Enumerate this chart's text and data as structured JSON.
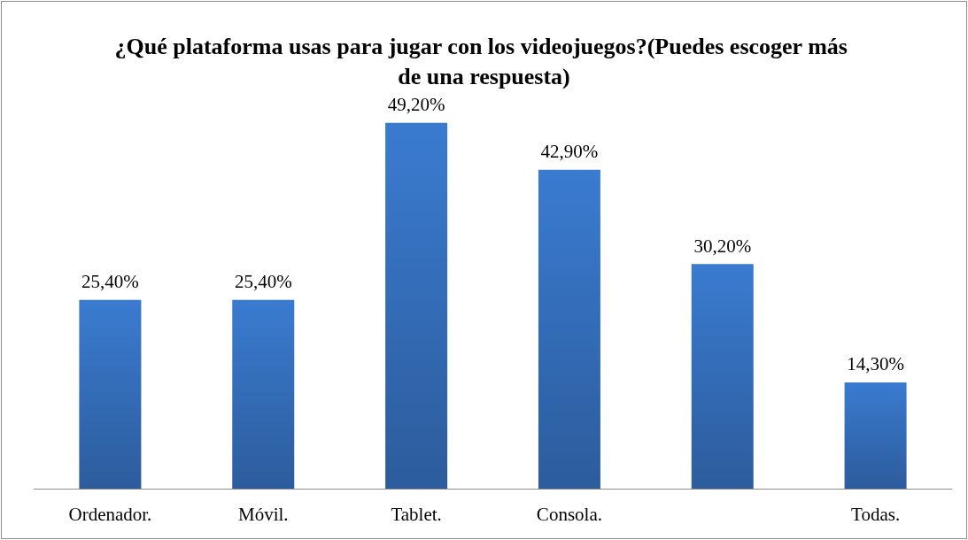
{
  "chart_data": {
    "type": "bar",
    "title": "¿Qué plataforma usas para jugar con los videojuegos?(Puedes escoger más de una respuesta)",
    "categories": [
      "Ordenador.",
      "Móvil.",
      "Tablet.",
      "Consola.",
      null,
      "Todas."
    ],
    "values": [
      25.4,
      25.4,
      49.2,
      42.9,
      30.2,
      14.3
    ],
    "value_labels": [
      "25,40%",
      "25,40%",
      "49,20%",
      "42,90%",
      "30,20%",
      "14,30%"
    ],
    "color": "#3a7bd0",
    "grid": false
  }
}
